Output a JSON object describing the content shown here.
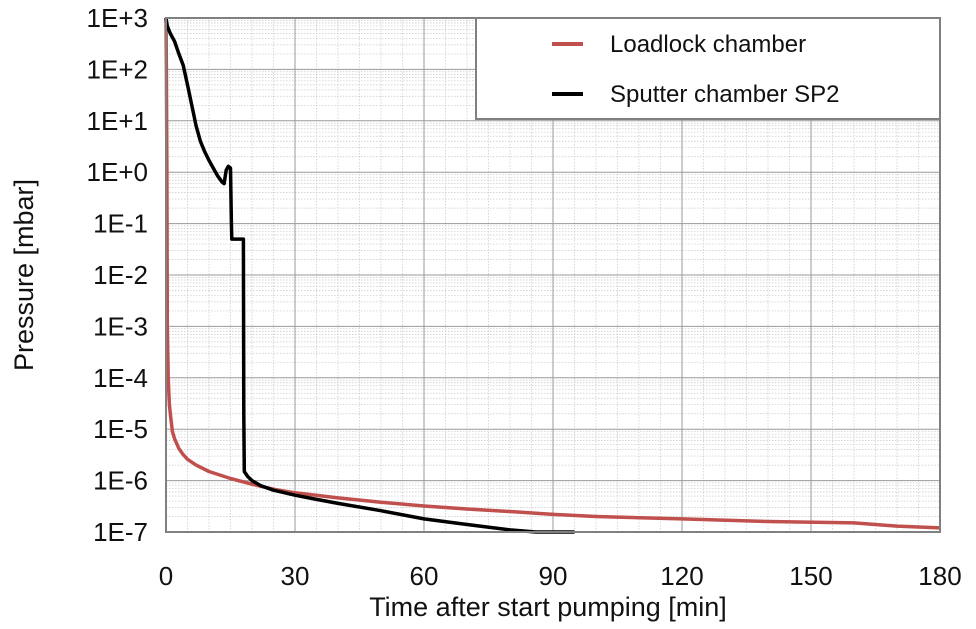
{
  "chart_data": {
    "type": "line",
    "title": "",
    "xlabel": "Time after start pumping [min]",
    "ylabel": "Pressure [mbar]",
    "xlim": [
      0,
      180
    ],
    "ylim": [
      1e-07,
      1000
    ],
    "y_scale": "log",
    "grid": true,
    "legend_position": "top-right",
    "x_ticks": [
      {
        "value": 0,
        "label": "0"
      },
      {
        "value": 30,
        "label": "30"
      },
      {
        "value": 60,
        "label": "60"
      },
      {
        "value": 90,
        "label": "90"
      },
      {
        "value": 120,
        "label": "120"
      },
      {
        "value": 150,
        "label": "150"
      },
      {
        "value": 180,
        "label": "180"
      }
    ],
    "y_ticks": [
      {
        "value": 1000,
        "label": "1E+3"
      },
      {
        "value": 100,
        "label": "1E+2"
      },
      {
        "value": 10,
        "label": "1E+1"
      },
      {
        "value": 1,
        "label": "1E+0"
      },
      {
        "value": 0.1,
        "label": "1E-1"
      },
      {
        "value": 0.01,
        "label": "1E-2"
      },
      {
        "value": 0.001,
        "label": "1E-3"
      },
      {
        "value": 0.0001,
        "label": "1E-4"
      },
      {
        "value": 1e-05,
        "label": "1E-5"
      },
      {
        "value": 1e-06,
        "label": "1E-6"
      },
      {
        "value": 1e-07,
        "label": "1E-7"
      }
    ],
    "series": [
      {
        "name": "Loadlock chamber",
        "color": "#c0504d",
        "x": [
          0,
          0.1,
          0.2,
          0.3,
          0.5,
          0.8,
          1,
          1.5,
          2,
          3,
          4,
          5,
          7,
          10,
          15,
          20,
          25,
          30,
          40,
          50,
          60,
          70,
          80,
          90,
          100,
          120,
          140,
          160,
          170,
          180
        ],
        "y": [
          1000,
          100,
          1,
          0.001,
          0.0001,
          3e-05,
          2e-05,
          9e-06,
          6.5e-06,
          4.2e-06,
          3.2e-06,
          2.6e-06,
          2e-06,
          1.5e-06,
          1.1e-06,
          8.5e-07,
          6.8e-07,
          5.8e-07,
          4.6e-07,
          3.8e-07,
          3.2e-07,
          2.8e-07,
          2.5e-07,
          2.2e-07,
          2e-07,
          1.8e-07,
          1.6e-07,
          1.5e-07,
          1.3e-07,
          1.2e-07
        ]
      },
      {
        "name": "Sputter chamber SP2",
        "color": "#000000",
        "x": [
          0,
          0.3,
          1,
          2,
          3,
          4,
          5,
          6,
          7,
          8,
          9,
          10,
          11,
          12,
          13,
          13.5,
          14,
          14.5,
          15,
          15.2,
          15.3,
          16,
          17,
          17.5,
          18,
          18.1,
          18.2,
          19,
          20,
          22,
          25,
          30,
          35,
          40,
          50,
          60,
          70,
          80,
          86,
          88,
          95
        ],
        "y": [
          1000,
          700,
          500,
          350,
          200,
          120,
          50,
          20,
          8,
          4,
          2.5,
          1.7,
          1.2,
          0.85,
          0.65,
          0.6,
          1.1,
          1.3,
          1.2,
          0.1,
          0.05,
          0.05,
          0.05,
          0.05,
          0.05,
          2e-05,
          1.5e-06,
          1.2e-06,
          1e-06,
          8e-07,
          6.5e-07,
          5.2e-07,
          4.3e-07,
          3.6e-07,
          2.6e-07,
          1.8e-07,
          1.4e-07,
          1.1e-07,
          1e-07,
          9.5e-08,
          9.5e-08
        ]
      }
    ]
  }
}
